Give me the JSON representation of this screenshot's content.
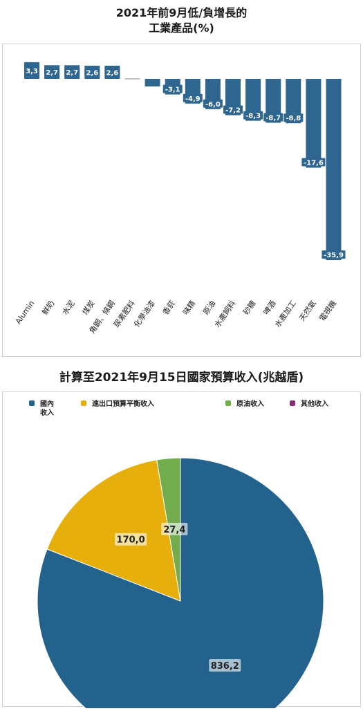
{
  "charts": [
    {
      "title_line1": "2021年前9月低/負增長的",
      "title_line2": "工業產品(%)"
    },
    {
      "title": "計算至2021年9月15日國家預算收入(兆越盾)"
    }
  ],
  "chart_data": [
    {
      "type": "bar",
      "title": "2021年前9月低/負增長的工業產品(%)",
      "categories": [
        "Alumin",
        "鮮奶",
        "水泥",
        "煤炭",
        "角鋼、條鋼",
        "尿素肥料",
        "化學油漆",
        "香菸",
        "味精",
        "原油",
        "水產飼料",
        "砂糖",
        "啤酒",
        "水產加工",
        "天然氣",
        "電視機"
      ],
      "values": [
        3.3,
        2.7,
        2.7,
        2.6,
        2.6,
        0.0,
        -1.5,
        -3.1,
        -4.9,
        -6.0,
        -7.2,
        -8.3,
        -8.7,
        -8.8,
        -17.6,
        -35.9
      ],
      "data_labels": [
        "3,3",
        "2,7",
        "2,7",
        "2,6",
        "2,6",
        "",
        "",
        "-3,1",
        "-4,9",
        "-6,0",
        "-7,2",
        "-8,3",
        "-8,7",
        "-8,8",
        "-17,6",
        "-35,9"
      ],
      "ylim": [
        -38,
        5
      ],
      "color": "#2e6690"
    },
    {
      "type": "pie",
      "title": "計算至2021年9月15日國家預算收入(兆越盾)",
      "legend_position": "top",
      "slices": [
        {
          "name": "國內收入",
          "value": 836.2,
          "label": "836,2",
          "color": "#23628d",
          "legend_lines": [
            "國內",
            "收入"
          ]
        },
        {
          "name": "進出口預算平衡收入",
          "value": 170.0,
          "label": "170,0",
          "color": "#e7af0c",
          "legend_lines": [
            "進出口預算平衡收入"
          ]
        },
        {
          "name": "原油收入",
          "value": 27.4,
          "label": "27,4",
          "color": "#72ac4c",
          "legend_lines": [
            "原油收入"
          ]
        },
        {
          "name": "其他收入",
          "value": 0,
          "label": "",
          "color": "#8a2d6e",
          "legend_lines": [
            "其他收入"
          ]
        }
      ]
    }
  ]
}
